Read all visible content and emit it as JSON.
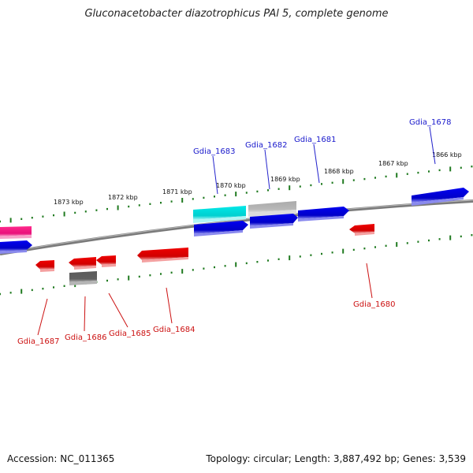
{
  "title": "Gluconacetobacter diazotrophicus PAl 5, complete genome",
  "footer": {
    "accession": "Accession: NC_011365",
    "summary": "Topology: circular; Length: 3,887,492 bp; Genes: 3,539"
  },
  "colors": {
    "backbone": "#808080",
    "forward_gene": "#0000ee",
    "reverse_gene": "#ee0000",
    "tick": "#1f7a1f",
    "forward_label": "#1a1acc",
    "reverse_label": "#cc1111"
  },
  "scale_labels": [
    "1873 kbp",
    "1872 kbp",
    "1871 kbp",
    "1870 kbp",
    "1869 kbp",
    "1868 kbp",
    "1867 kbp",
    "1866 kbp"
  ],
  "forward_labels": [
    "Gdia_1683",
    "Gdia_1682",
    "Gdia_1681",
    "Gdia_1678"
  ],
  "reverse_labels": [
    "Gdia_1687",
    "Gdia_1686",
    "Gdia_1685",
    "Gdia_1684",
    "Gdia_1680"
  ]
}
